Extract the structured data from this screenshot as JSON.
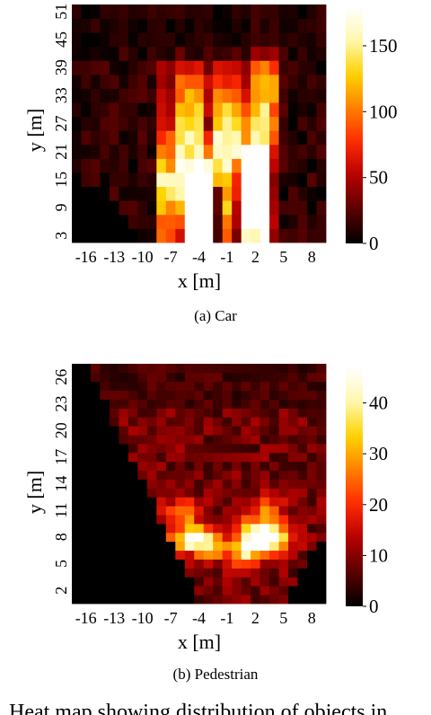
{
  "caption_partial": "Heat map showing distribution of objects in",
  "colormap": [
    "#000000",
    "#5a0000",
    "#b40000",
    "#ff2a00",
    "#ff8000",
    "#ffd400",
    "#fff8b0",
    "#ffffff"
  ],
  "chart_data": [
    {
      "type": "heatmap",
      "subcaption": "(a) Car",
      "xlabel": "x [m]",
      "ylabel": "y [m]",
      "x_ticks": [
        "-16",
        "-13",
        "-10",
        "-7",
        "-4",
        "-1",
        "2",
        "5",
        "8"
      ],
      "y_ticks": [
        "3",
        "9",
        "15",
        "21",
        "27",
        "33",
        "39",
        "45",
        "51"
      ],
      "xlim": [
        -17.5,
        9.5
      ],
      "ylim": [
        1.5,
        52.5
      ],
      "cols": 27,
      "rows": 17,
      "colorbar": {
        "min": 0,
        "max": 180,
        "ticks": [
          "0",
          "50",
          "100",
          "150"
        ]
      },
      "hotspots": [
        {
          "x": -4,
          "y": 4,
          "value": 175
        },
        {
          "x": -4,
          "y": 12,
          "value": 130
        },
        {
          "x": -7,
          "y": 14,
          "value": 110
        },
        {
          "x": 2,
          "y": 8,
          "value": 150
        },
        {
          "x": 2,
          "y": 18,
          "value": 120
        },
        {
          "x": -1,
          "y": 24,
          "value": 120
        },
        {
          "x": -5,
          "y": 27,
          "value": 85
        },
        {
          "x": 3,
          "y": 33,
          "value": 75
        },
        {
          "x": -2,
          "y": 8,
          "value": 70
        }
      ]
    },
    {
      "type": "heatmap",
      "subcaption": "(b) Pedestrian",
      "xlabel": "x [m]",
      "ylabel": "y [m]",
      "x_ticks": [
        "-16",
        "-13",
        "-10",
        "-7",
        "-4",
        "-1",
        "2",
        "5",
        "8"
      ],
      "y_ticks": [
        "2",
        "5",
        "8",
        "11",
        "14",
        "17",
        "20",
        "23",
        "26"
      ],
      "xlim": [
        -17.5,
        9.5
      ],
      "ylim": [
        0.5,
        27.5
      ],
      "cols": 27,
      "rows": 27,
      "colorbar": {
        "min": 0,
        "max": 47,
        "ticks": [
          "0",
          "10",
          "20",
          "30",
          "40"
        ]
      },
      "hotspots": [
        {
          "x": 2,
          "y": 8,
          "value": 45
        },
        {
          "x": -5,
          "y": 8,
          "value": 32
        },
        {
          "x": 4,
          "y": 8,
          "value": 30
        },
        {
          "x": -3,
          "y": 7,
          "value": 25
        },
        {
          "x": 1,
          "y": 6,
          "value": 22
        },
        {
          "x": -6,
          "y": 11,
          "value": 18
        },
        {
          "x": 3,
          "y": 11,
          "value": 18
        }
      ]
    }
  ]
}
